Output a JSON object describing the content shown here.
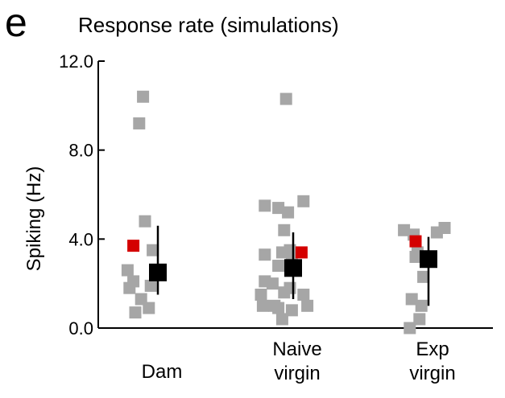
{
  "panel_letter": "e",
  "chart_data": {
    "type": "scatter",
    "title": "Response rate (simulations)",
    "ylabel": "Spiking (Hz)",
    "xlabel": "",
    "ylim": [
      0,
      12
    ],
    "yticks": [
      "0.0",
      "4.0",
      "8.0",
      "12.0"
    ],
    "categories": [
      "Dam",
      "Naive\nvirgin",
      "Exp\nvirgin"
    ],
    "colors": {
      "points": "#a6a6a6",
      "highlight": "#d40000",
      "summary": "#000000"
    },
    "groups": [
      {
        "category": "Dam",
        "points": [
          [
            -0.55,
            10.4
          ],
          [
            -0.65,
            9.2
          ],
          [
            -0.5,
            4.8
          ],
          [
            -0.3,
            3.5
          ],
          [
            -0.95,
            2.6
          ],
          [
            -0.15,
            2.5
          ],
          [
            -0.8,
            2.1
          ],
          [
            -0.35,
            1.9
          ],
          [
            -0.9,
            1.8
          ],
          [
            -0.6,
            1.3
          ],
          [
            -0.4,
            0.9
          ],
          [
            -0.75,
            0.7
          ]
        ],
        "highlight": [
          -0.8,
          3.7
        ],
        "mean": 2.5,
        "error": [
          1.5,
          4.6
        ]
      },
      {
        "category": "Naive\nvirgin",
        "points": [
          [
            -0.35,
            10.3
          ],
          [
            -0.9,
            5.5
          ],
          [
            0.1,
            5.7
          ],
          [
            -0.3,
            5.2
          ],
          [
            -0.55,
            5.4
          ],
          [
            -0.4,
            4.4
          ],
          [
            -0.25,
            3.5
          ],
          [
            -0.45,
            3.4
          ],
          [
            -0.9,
            3.3
          ],
          [
            -0.2,
            3.0
          ],
          [
            -0.55,
            2.8
          ],
          [
            -0.9,
            2.1
          ],
          [
            -0.25,
            1.8
          ],
          [
            -0.7,
            2.0
          ],
          [
            -1.0,
            1.5
          ],
          [
            -0.4,
            1.6
          ],
          [
            0.1,
            1.5
          ],
          [
            -0.65,
            1.0
          ],
          [
            -0.55,
            0.9
          ],
          [
            -0.2,
            0.8
          ],
          [
            -0.95,
            1.0
          ],
          [
            0.2,
            1.0
          ],
          [
            -0.45,
            0.4
          ]
        ],
        "highlight": [
          0.05,
          3.4
        ],
        "mean": 2.7,
        "error": [
          1.3,
          4.3
        ]
      },
      {
        "category": "Exp\nvirgin",
        "points": [
          [
            -0.8,
            4.4
          ],
          [
            -0.55,
            4.2
          ],
          [
            0.05,
            4.3
          ],
          [
            0.25,
            4.5
          ],
          [
            -0.45,
            3.4
          ],
          [
            -0.5,
            3.2
          ],
          [
            -0.15,
            3.2
          ],
          [
            -0.3,
            2.3
          ],
          [
            -0.6,
            1.3
          ],
          [
            -0.35,
            1.0
          ],
          [
            -0.4,
            0.4
          ],
          [
            -0.65,
            0.0
          ]
        ],
        "highlight": [
          -0.5,
          3.9
        ],
        "mean": 3.1,
        "error": [
          1.0,
          4.1
        ]
      }
    ]
  }
}
